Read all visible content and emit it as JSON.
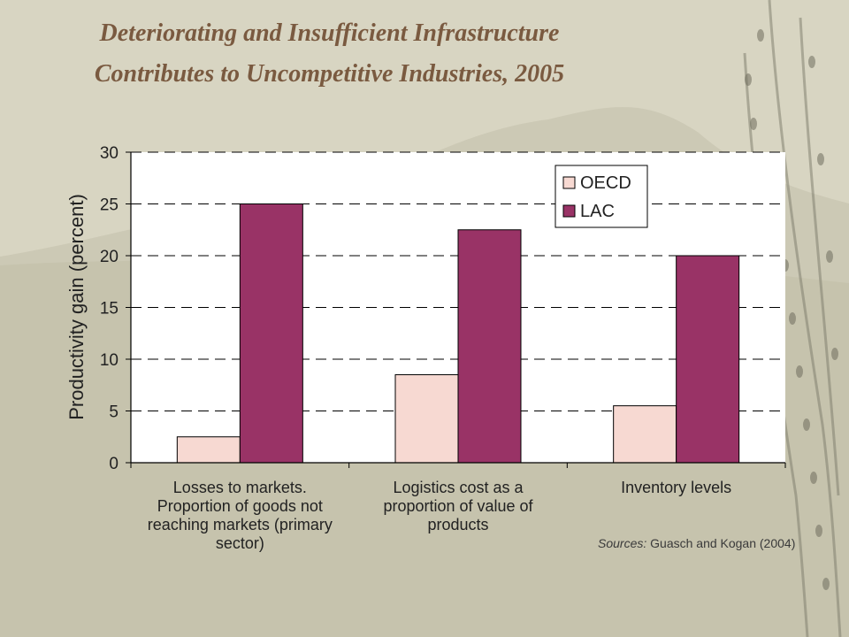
{
  "title": {
    "line1": "Deteriorating and  Insufficient Infrastructure",
    "line2": "Contributes to Uncompetitive Industries, 2005"
  },
  "source": {
    "label": "Sources:",
    "text": " Guasch and Kogan (2004)"
  },
  "colors": {
    "oecd": "#f7d9d2",
    "lac": "#993366",
    "plot_bg": "#ffffff",
    "title": "#7a5a40"
  },
  "chart_data": {
    "type": "bar",
    "ylabel": "Productivity gain (percent)",
    "xlabel": "",
    "ylim": [
      0,
      30
    ],
    "yticks": [
      0,
      5,
      10,
      15,
      20,
      25,
      30
    ],
    "grid": true,
    "legend": "top-right",
    "categories": [
      [
        "Losses to markets.",
        "Proportion of goods not",
        "reaching markets (primary",
        "sector)"
      ],
      [
        "Logistics cost as a",
        "proportion of value of",
        "products"
      ],
      [
        "Inventory levels"
      ]
    ],
    "series": [
      {
        "name": "OECD",
        "values": [
          2.5,
          8.5,
          5.5
        ]
      },
      {
        "name": "LAC",
        "values": [
          25,
          22.5,
          20
        ]
      }
    ]
  }
}
